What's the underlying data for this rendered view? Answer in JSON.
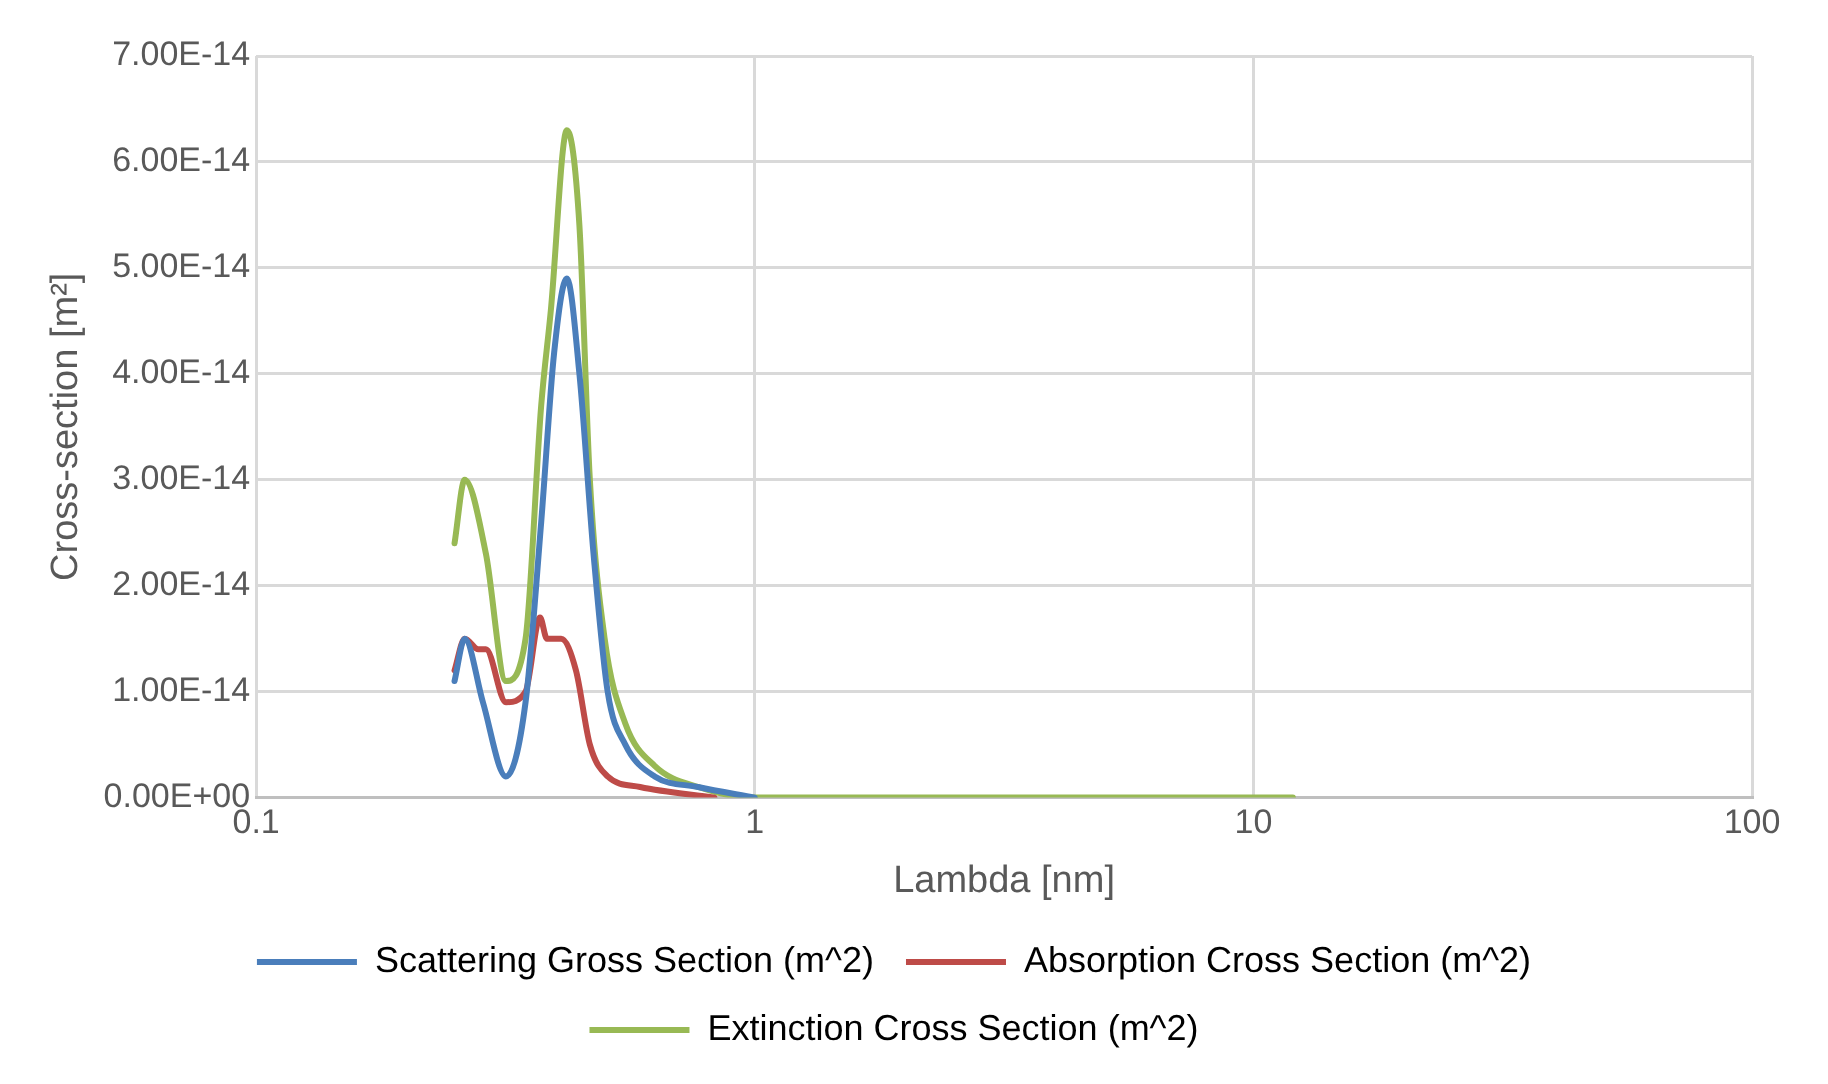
{
  "chart_data": {
    "type": "line",
    "xlabel": "Lambda [nm]",
    "ylabel": "Cross-section [m²]",
    "log": "x",
    "xlim": [
      0.1,
      100
    ],
    "xticks": [
      0.1,
      1,
      10,
      100
    ],
    "ylim": [
      0,
      7e-14
    ],
    "yticks": [
      {
        "value": 0,
        "label": "0.00E+00"
      },
      {
        "value": 1e-14,
        "label": "1.00E-14"
      },
      {
        "value": 2e-14,
        "label": "2.00E-14"
      },
      {
        "value": 3e-14,
        "label": "3.00E-14"
      },
      {
        "value": 4e-14,
        "label": "4.00E-14"
      },
      {
        "value": 5e-14,
        "label": "5.00E-14"
      },
      {
        "value": 6e-14,
        "label": "6.00E-14"
      },
      {
        "value": 7e-14,
        "label": "7.00E-14"
      }
    ],
    "grid": true,
    "legend": "bottom",
    "marker": "none",
    "line_style": "solid",
    "series": [
      {
        "name": "Scattering Gross Section (m^2)",
        "color": "#4a7ebb",
        "x": [
          0.25,
          0.262,
          0.285,
          0.317,
          0.347,
          0.373,
          0.396,
          0.42,
          0.445,
          0.475,
          0.507,
          0.55,
          0.63,
          0.77,
          1
        ],
        "values": [
          1.1e-14,
          1.5e-14,
          9e-15,
          2e-15,
          9e-15,
          2.6e-14,
          4.2e-14,
          4.9e-14,
          4e-14,
          2.3e-14,
          1e-14,
          5e-15,
          2e-15,
          1e-15,
          0
        ]
      },
      {
        "name": "Absorption Cross Section (m^2)",
        "color": "#be4b48",
        "x": [
          0.25,
          0.262,
          0.279,
          0.289,
          0.317,
          0.347,
          0.371,
          0.383,
          0.409,
          0.438,
          0.467,
          0.507,
          0.589,
          0.83
        ],
        "values": [
          1.2e-14,
          1.5e-14,
          1.4e-14,
          1.4e-14,
          9e-15,
          1e-14,
          1.7e-14,
          1.5e-14,
          1.5e-14,
          1.2e-14,
          5e-15,
          2e-15,
          1e-15,
          0
        ]
      },
      {
        "name": "Extinction Cross Section (m^2)",
        "color": "#98b954",
        "x": [
          0.25,
          0.262,
          0.289,
          0.317,
          0.347,
          0.373,
          0.39,
          0.42,
          0.445,
          0.467,
          0.5,
          0.55,
          0.63,
          0.77,
          1,
          2,
          5,
          12
        ],
        "values": [
          2.4e-14,
          3e-14,
          2.3e-14,
          1.1e-14,
          1.5e-14,
          3.7e-14,
          4.6e-14,
          6.3e-14,
          5.4e-14,
          3e-14,
          1.5e-14,
          7e-15,
          3e-15,
          1e-15,
          0,
          0,
          0,
          0
        ]
      }
    ]
  }
}
